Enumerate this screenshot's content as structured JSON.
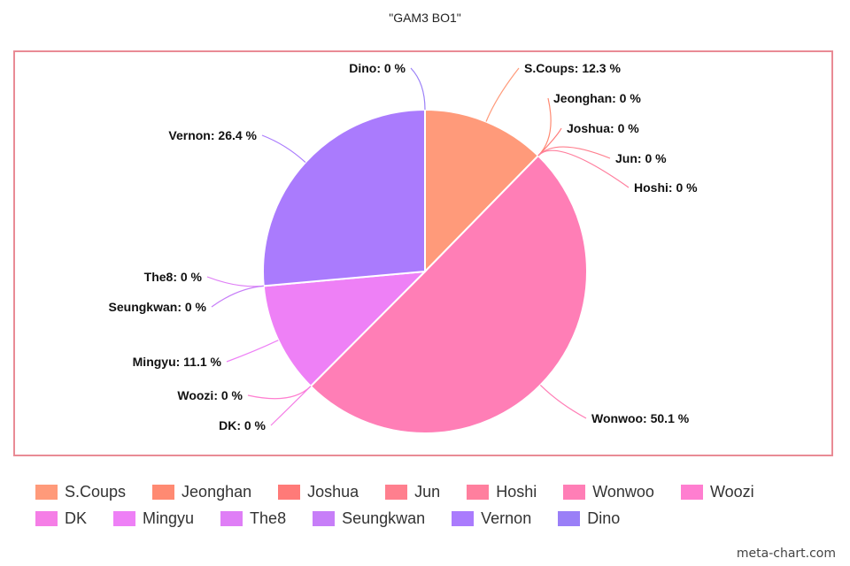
{
  "chart_data": {
    "type": "pie",
    "title": "\"GAM3 BO1\"",
    "unit": "%",
    "legend_position": "bottom",
    "series": [
      {
        "name": "S.Coups",
        "value": 12.3,
        "color": "#ff9a7a"
      },
      {
        "name": "Jeonghan",
        "value": 0,
        "color": "#ff8a72"
      },
      {
        "name": "Joshua",
        "value": 0,
        "color": "#ff7a78"
      },
      {
        "name": "Jun",
        "value": 0,
        "color": "#ff7f8e"
      },
      {
        "name": "Hoshi",
        "value": 0,
        "color": "#ff7f9e"
      },
      {
        "name": "Wonwoo",
        "value": 50.1,
        "color": "#ff7eb6"
      },
      {
        "name": "Woozi",
        "value": 0,
        "color": "#ff7ed0"
      },
      {
        "name": "DK",
        "value": 0,
        "color": "#f57ee6"
      },
      {
        "name": "Mingyu",
        "value": 11.1,
        "color": "#ee80f6"
      },
      {
        "name": "The8",
        "value": 0,
        "color": "#df7ef6"
      },
      {
        "name": "Seungkwan",
        "value": 0,
        "color": "#c77ef8"
      },
      {
        "name": "Vernon",
        "value": 26.4,
        "color": "#aa7bfd"
      },
      {
        "name": "Dino",
        "value": 0,
        "color": "#9a7ff7"
      }
    ]
  },
  "watermark": "meta-chart.com"
}
